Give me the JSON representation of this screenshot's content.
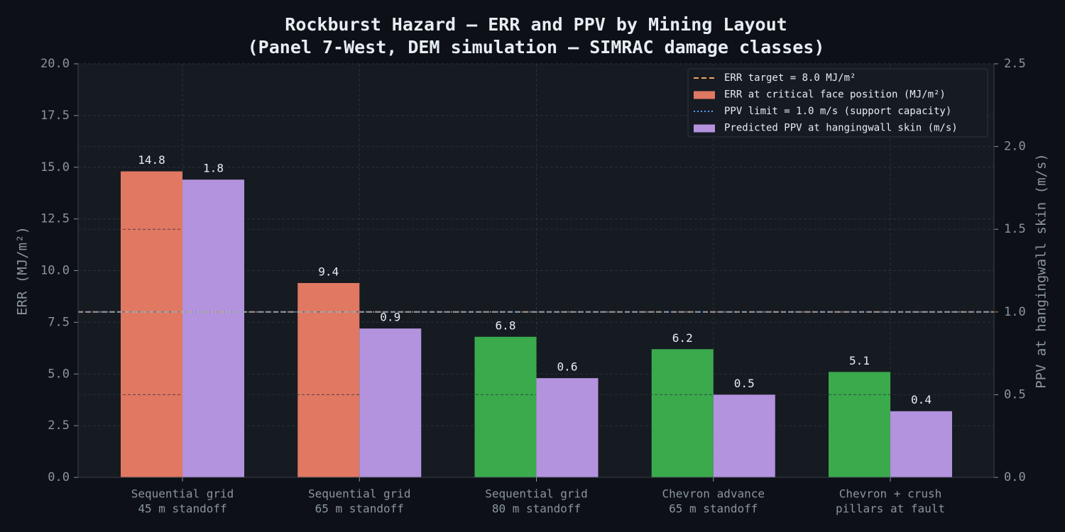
{
  "chart_data": {
    "type": "bar",
    "title": "Rockburst Hazard — ERR and PPV by Mining Layout",
    "subtitle": "(Panel 7-West, DEM simulation — SIMRAC damage classes)",
    "ylabel": "ERR (MJ/m²)",
    "y2label": "PPV at hangingwall skin (m/s)",
    "categories": [
      [
        "Sequential grid",
        "45 m standoff"
      ],
      [
        "Sequential grid",
        "65 m standoff"
      ],
      [
        "Sequential grid",
        "80 m standoff"
      ],
      [
        "Chevron advance",
        "65 m standoff"
      ],
      [
        "Chevron + crush",
        "pillars at fault"
      ]
    ],
    "series": [
      {
        "name": "ERR at critical face position (MJ/m²)",
        "color": "#e07862",
        "colors": [
          "#e07862",
          "#e07862",
          "#3aaa4c",
          "#3aaa4c",
          "#3aaa4c"
        ],
        "values": [
          14.8,
          9.4,
          6.8,
          6.2,
          5.1
        ]
      },
      {
        "name": "Predicted PPV at hangingwall skin (m/s)",
        "color": "#b392de",
        "axis": "y2",
        "values": [
          1.8,
          0.9,
          0.6,
          0.5,
          0.4
        ]
      }
    ],
    "reference_lines": [
      {
        "name": "ERR target = 8.0 MJ/m²",
        "value": 8.0,
        "color": "#f5a55a",
        "style": "dashed"
      },
      {
        "name": "PPV limit = 1.0 m/s (support capacity)",
        "value": 1.0,
        "color": "#4da3ff",
        "style": "dotted",
        "axis": "y2"
      }
    ],
    "ylim": [
      0,
      20
    ],
    "yticks": [
      {
        "value": 0,
        "label": "0.0"
      },
      2.5,
      {
        "value": 5,
        "label": "5.0"
      },
      7.5,
      {
        "value": 10,
        "label": "10.0"
      },
      12.5,
      {
        "value": 15,
        "label": "15.0"
      },
      17.5,
      {
        "value": 20,
        "label": "20.0"
      }
    ],
    "y2lim": [
      0,
      2.5
    ],
    "y2ticks": [
      {
        "value": 0,
        "label": "0.0"
      },
      0.5,
      {
        "value": 1,
        "label": "1.0"
      },
      1.5,
      {
        "value": 2,
        "label": "2.0"
      },
      2.5
    ],
    "grid": true,
    "legend": "upper right"
  }
}
